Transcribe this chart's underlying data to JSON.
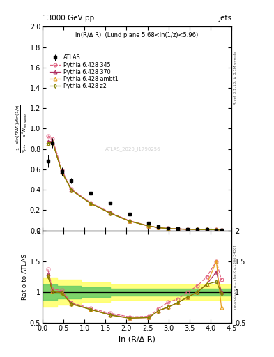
{
  "title": "13000 GeV pp",
  "title_right": "Jets",
  "subplot_title": "ln(R/Δ R)  (Lund plane 5.68<ln(1/z)<5.96)",
  "xlabel": "ln (R/Δ R)",
  "ylabel_ratio": "Ratio to ATLAS",
  "right_label": "Rivet 3.1.10, ≥ 3.1M events",
  "right_label2": "mcplots.cern.ch [arXiv:1306.3436]",
  "watermark": "ATLAS_2020_I1790256",
  "atlas_x": [
    0.13,
    0.24,
    0.46,
    0.69,
    1.15,
    1.61,
    2.07,
    2.53,
    2.76,
    2.99,
    3.22,
    3.45,
    3.68,
    3.91,
    4.14,
    4.26
  ],
  "atlas_y": [
    0.68,
    0.86,
    0.58,
    0.49,
    0.37,
    0.27,
    0.16,
    0.075,
    0.04,
    0.025,
    0.018,
    0.013,
    0.01,
    0.008,
    0.006,
    0.005
  ],
  "atlas_yerr": [
    0.06,
    0.05,
    0.04,
    0.03,
    0.02,
    0.015,
    0.01,
    0.006,
    0.004,
    0.003,
    0.002,
    0.002,
    0.0015,
    0.001,
    0.001,
    0.001
  ],
  "p345_x": [
    0.13,
    0.24,
    0.46,
    0.69,
    1.15,
    1.61,
    2.07,
    2.53,
    2.76,
    2.99,
    3.22,
    3.45,
    3.68,
    3.91,
    4.14,
    4.26
  ],
  "p345_y": [
    0.93,
    0.9,
    0.595,
    0.405,
    0.272,
    0.177,
    0.096,
    0.046,
    0.029,
    0.021,
    0.016,
    0.013,
    0.011,
    0.01,
    0.009,
    0.006
  ],
  "p345_color": "#e06080",
  "p345_linestyle": "--",
  "p345_marker": "o",
  "p345_label": "Pythia 6.428 345",
  "p370_x": [
    0.13,
    0.24,
    0.46,
    0.69,
    1.15,
    1.61,
    2.07,
    2.53,
    2.76,
    2.99,
    3.22,
    3.45,
    3.68,
    3.91,
    4.14,
    4.26
  ],
  "p370_y": [
    0.875,
    0.875,
    0.582,
    0.4,
    0.266,
    0.172,
    0.093,
    0.044,
    0.028,
    0.019,
    0.015,
    0.012,
    0.01,
    0.009,
    0.008,
    0.005
  ],
  "p370_color": "#b03060",
  "p370_linestyle": "-",
  "p370_marker": "^",
  "p370_label": "Pythia 6.428 370",
  "pambt_x": [
    0.13,
    0.24,
    0.46,
    0.69,
    1.15,
    1.61,
    2.07,
    2.53,
    2.76,
    2.99,
    3.22,
    3.45,
    3.68,
    3.91,
    4.14,
    4.26
  ],
  "pambt_y": [
    0.855,
    0.868,
    0.575,
    0.396,
    0.265,
    0.17,
    0.092,
    0.044,
    0.028,
    0.019,
    0.015,
    0.012,
    0.01,
    0.009,
    0.009,
    0.005
  ],
  "pambt_color": "#e8a020",
  "pambt_linestyle": "-",
  "pambt_marker": "^",
  "pambt_label": "Pythia 6.428 ambt1",
  "pz2_x": [
    0.13,
    0.24,
    0.46,
    0.69,
    1.15,
    1.61,
    2.07,
    2.53,
    2.76,
    2.99,
    3.22,
    3.45,
    3.68,
    3.91,
    4.14,
    4.26
  ],
  "pz2_y": [
    0.855,
    0.868,
    0.575,
    0.396,
    0.265,
    0.17,
    0.092,
    0.044,
    0.028,
    0.019,
    0.015,
    0.012,
    0.01,
    0.009,
    0.007,
    0.005
  ],
  "pz2_color": "#808000",
  "pz2_linestyle": "-",
  "pz2_marker": "d",
  "pz2_label": "Pythia 6.428 z2",
  "ratio_x": [
    0.13,
    0.24,
    0.46,
    0.69,
    1.15,
    1.61,
    2.07,
    2.53,
    2.76,
    2.99,
    3.22,
    3.45,
    3.68,
    3.91,
    4.14,
    4.26
  ],
  "ratio_p345": [
    1.37,
    1.05,
    1.03,
    0.83,
    0.74,
    0.66,
    0.6,
    0.61,
    0.73,
    0.84,
    0.89,
    1.0,
    1.1,
    1.25,
    1.5,
    1.2
  ],
  "ratio_p370": [
    1.29,
    1.02,
    1.0,
    0.82,
    0.72,
    0.64,
    0.58,
    0.59,
    0.7,
    0.76,
    0.83,
    0.92,
    1.0,
    1.13,
    1.33,
    1.0
  ],
  "ratio_pambt": [
    1.26,
    1.01,
    0.99,
    0.81,
    0.72,
    0.63,
    0.58,
    0.59,
    0.7,
    0.76,
    0.83,
    0.92,
    1.0,
    1.13,
    1.5,
    0.75
  ],
  "ratio_pz2": [
    1.26,
    1.01,
    0.99,
    0.81,
    0.72,
    0.63,
    0.58,
    0.59,
    0.7,
    0.76,
    0.83,
    0.92,
    1.0,
    1.13,
    1.17,
    0.98
  ],
  "band_x_edges": [
    0.0,
    0.35,
    0.92,
    1.61,
    4.5
  ],
  "green_lo": [
    0.88,
    0.9,
    0.92,
    0.94,
    0.94
  ],
  "green_hi": [
    1.12,
    1.1,
    1.08,
    1.06,
    1.06
  ],
  "yellow_lo": [
    0.76,
    0.8,
    0.84,
    0.88,
    0.88
  ],
  "yellow_hi": [
    1.24,
    1.2,
    1.16,
    1.12,
    1.12
  ],
  "xlim": [
    0.0,
    4.5
  ],
  "ylim_main": [
    0.0,
    2.0
  ],
  "ylim_ratio": [
    0.5,
    2.0
  ],
  "yticks_main": [
    0.0,
    0.2,
    0.4,
    0.6,
    0.8,
    1.0,
    1.2,
    1.4,
    1.6,
    1.8,
    2.0
  ],
  "yticks_ratio": [
    0.5,
    1.0,
    1.5,
    2.0
  ],
  "background_color": "#ffffff"
}
